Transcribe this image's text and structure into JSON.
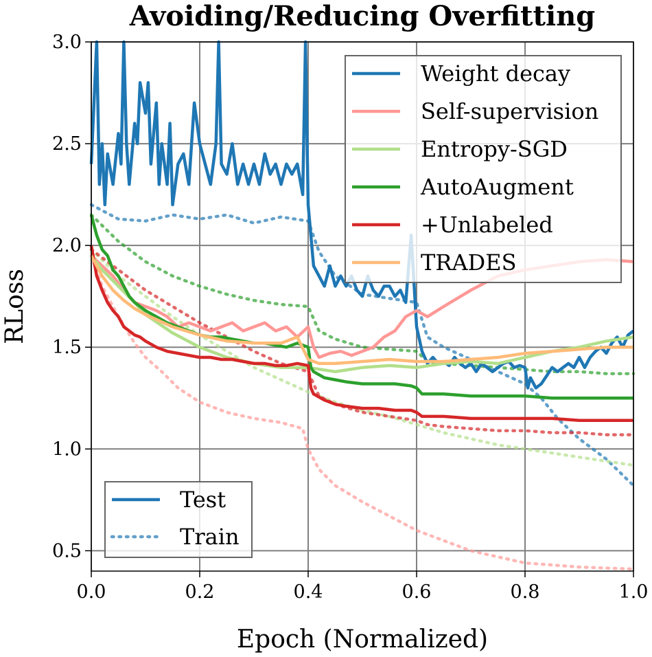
{
  "chart_data": {
    "type": "line",
    "title": "Avoiding/Reducing Overfitting",
    "xlabel": "Epoch (Normalized)",
    "ylabel": "RLoss",
    "xlim": [
      0.0,
      1.0
    ],
    "ylim": [
      0.4,
      3.0
    ],
    "xticks": [
      0.0,
      0.2,
      0.4,
      0.6,
      0.8,
      1.0
    ],
    "xtick_labels": [
      "0.0",
      "0.2",
      "0.4",
      "0.6",
      "0.8",
      "1.0"
    ],
    "yticks": [
      0.5,
      1.0,
      1.5,
      2.0,
      2.5,
      3.0
    ],
    "ytick_labels": [
      "0.5",
      "1.0",
      "1.5",
      "2.0",
      "2.5",
      "3.0"
    ],
    "grid": true,
    "legend_series_position": "top-right",
    "legend_style_position": "bottom-left",
    "style_legend": [
      {
        "label": "Test",
        "dash": "solid"
      },
      {
        "label": "Train",
        "dash": "dotted"
      }
    ],
    "series": [
      {
        "name": "Weight decay",
        "color": "#1f77b4",
        "test": {
          "x": [
            0.0,
            0.01,
            0.015,
            0.02,
            0.025,
            0.03,
            0.04,
            0.05,
            0.055,
            0.06,
            0.065,
            0.07,
            0.08,
            0.085,
            0.09,
            0.1,
            0.105,
            0.11,
            0.12,
            0.125,
            0.13,
            0.14,
            0.145,
            0.15,
            0.16,
            0.17,
            0.18,
            0.19,
            0.2,
            0.21,
            0.22,
            0.23,
            0.235,
            0.24,
            0.25,
            0.26,
            0.27,
            0.28,
            0.29,
            0.3,
            0.31,
            0.32,
            0.33,
            0.34,
            0.35,
            0.36,
            0.37,
            0.38,
            0.39,
            0.395,
            0.4,
            0.41,
            0.42,
            0.43,
            0.44,
            0.45,
            0.46,
            0.47,
            0.48,
            0.49,
            0.5,
            0.51,
            0.52,
            0.53,
            0.54,
            0.55,
            0.56,
            0.57,
            0.58,
            0.59,
            0.6,
            0.61,
            0.62,
            0.63,
            0.64,
            0.65,
            0.66,
            0.67,
            0.68,
            0.69,
            0.7,
            0.71,
            0.72,
            0.73,
            0.74,
            0.75,
            0.76,
            0.77,
            0.78,
            0.79,
            0.8,
            0.805,
            0.81,
            0.82,
            0.83,
            0.84,
            0.85,
            0.86,
            0.87,
            0.88,
            0.89,
            0.9,
            0.91,
            0.92,
            0.93,
            0.94,
            0.95,
            0.96,
            0.97,
            0.98,
            0.99,
            1.0
          ],
          "y": [
            2.4,
            3.0,
            2.3,
            2.5,
            2.2,
            2.45,
            2.3,
            2.55,
            2.4,
            3.0,
            2.5,
            2.3,
            2.6,
            2.5,
            2.8,
            2.65,
            2.8,
            2.4,
            2.7,
            2.3,
            2.5,
            2.3,
            2.6,
            2.2,
            2.4,
            2.45,
            2.3,
            2.7,
            2.5,
            2.4,
            2.3,
            2.5,
            3.0,
            2.4,
            2.35,
            2.5,
            2.3,
            2.4,
            2.3,
            2.4,
            2.3,
            2.45,
            2.35,
            2.4,
            2.3,
            2.4,
            2.35,
            2.4,
            2.25,
            3.0,
            2.2,
            1.9,
            1.85,
            1.8,
            1.9,
            1.8,
            1.85,
            1.8,
            1.85,
            1.78,
            1.75,
            1.85,
            1.78,
            1.75,
            1.8,
            1.8,
            1.75,
            1.78,
            1.72,
            2.05,
            1.6,
            1.48,
            1.42,
            1.45,
            1.42,
            1.43,
            1.41,
            1.45,
            1.42,
            1.4,
            1.42,
            1.38,
            1.42,
            1.4,
            1.38,
            1.4,
            1.42,
            1.43,
            1.4,
            1.41,
            1.4,
            1.3,
            1.35,
            1.3,
            1.32,
            1.36,
            1.4,
            1.38,
            1.4,
            1.42,
            1.4,
            1.45,
            1.4,
            1.45,
            1.48,
            1.5,
            1.47,
            1.52,
            1.55,
            1.5,
            1.56,
            1.58
          ]
        },
        "train": {
          "x": [
            0.0,
            0.05,
            0.1,
            0.15,
            0.2,
            0.25,
            0.3,
            0.35,
            0.4,
            0.42,
            0.45,
            0.5,
            0.55,
            0.6,
            0.62,
            0.65,
            0.7,
            0.75,
            0.8,
            0.83,
            0.86,
            0.9,
            0.95,
            1.0
          ],
          "y": [
            2.2,
            2.13,
            2.12,
            2.15,
            2.13,
            2.15,
            2.11,
            2.14,
            2.12,
            1.97,
            1.85,
            1.76,
            1.74,
            1.72,
            1.55,
            1.5,
            1.44,
            1.38,
            1.32,
            1.25,
            1.15,
            1.05,
            0.95,
            0.82
          ]
        }
      },
      {
        "name": "Self-supervision",
        "color": "#ff9896",
        "test": {
          "x": [
            0.0,
            0.02,
            0.04,
            0.06,
            0.08,
            0.1,
            0.12,
            0.14,
            0.16,
            0.18,
            0.2,
            0.22,
            0.24,
            0.26,
            0.28,
            0.3,
            0.32,
            0.34,
            0.36,
            0.38,
            0.4,
            0.41,
            0.42,
            0.44,
            0.46,
            0.48,
            0.5,
            0.52,
            0.54,
            0.56,
            0.58,
            0.6,
            0.62,
            0.65,
            0.7,
            0.75,
            0.8,
            0.85,
            0.9,
            0.95,
            1.0
          ],
          "y": [
            1.95,
            1.9,
            1.85,
            1.78,
            1.72,
            1.7,
            1.68,
            1.65,
            1.6,
            1.62,
            1.6,
            1.58,
            1.6,
            1.62,
            1.58,
            1.6,
            1.62,
            1.58,
            1.6,
            1.55,
            1.6,
            1.5,
            1.45,
            1.47,
            1.48,
            1.46,
            1.48,
            1.5,
            1.55,
            1.58,
            1.65,
            1.68,
            1.65,
            1.7,
            1.78,
            1.85,
            1.88,
            1.9,
            1.92,
            1.93,
            1.92
          ]
        },
        "train": {
          "x": [
            0.0,
            0.02,
            0.05,
            0.08,
            0.1,
            0.13,
            0.16,
            0.2,
            0.25,
            0.3,
            0.35,
            0.39,
            0.4,
            0.42,
            0.45,
            0.5,
            0.55,
            0.6,
            0.65,
            0.7,
            0.75,
            0.8,
            0.85,
            0.9,
            0.95,
            1.0
          ],
          "y": [
            1.95,
            1.8,
            1.65,
            1.52,
            1.45,
            1.38,
            1.3,
            1.23,
            1.18,
            1.15,
            1.13,
            1.1,
            1.0,
            0.9,
            0.82,
            0.74,
            0.67,
            0.6,
            0.55,
            0.5,
            0.47,
            0.44,
            0.43,
            0.42,
            0.415,
            0.41
          ]
        }
      },
      {
        "name": "Entropy-SGD",
        "color": "#b2df8a",
        "test": {
          "x": [
            0.0,
            0.02,
            0.05,
            0.08,
            0.1,
            0.15,
            0.2,
            0.25,
            0.3,
            0.35,
            0.4,
            0.45,
            0.5,
            0.55,
            0.6,
            0.65,
            0.7,
            0.75,
            0.8,
            0.85,
            0.9,
            0.95,
            1.0
          ],
          "y": [
            1.95,
            1.88,
            1.8,
            1.72,
            1.66,
            1.57,
            1.5,
            1.45,
            1.42,
            1.4,
            1.4,
            1.38,
            1.4,
            1.41,
            1.4,
            1.42,
            1.43,
            1.42,
            1.45,
            1.48,
            1.5,
            1.53,
            1.55
          ]
        },
        "train": {
          "x": [
            0.0,
            0.05,
            0.1,
            0.15,
            0.2,
            0.25,
            0.3,
            0.35,
            0.4,
            0.45,
            0.5,
            0.55,
            0.6,
            0.65,
            0.7,
            0.75,
            0.8,
            0.85,
            0.9,
            0.95,
            1.0
          ],
          "y": [
            1.98,
            1.85,
            1.75,
            1.65,
            1.56,
            1.48,
            1.4,
            1.34,
            1.28,
            1.23,
            1.19,
            1.16,
            1.12,
            1.08,
            1.05,
            1.02,
            1.0,
            0.98,
            0.96,
            0.94,
            0.92
          ]
        }
      },
      {
        "name": "AutoAugment",
        "color": "#2ca02c",
        "test": {
          "x": [
            0.0,
            0.01,
            0.02,
            0.03,
            0.04,
            0.05,
            0.06,
            0.07,
            0.08,
            0.09,
            0.1,
            0.12,
            0.14,
            0.16,
            0.18,
            0.2,
            0.22,
            0.24,
            0.26,
            0.28,
            0.3,
            0.32,
            0.34,
            0.36,
            0.38,
            0.4,
            0.405,
            0.41,
            0.43,
            0.45,
            0.47,
            0.5,
            0.53,
            0.56,
            0.59,
            0.6,
            0.61,
            0.65,
            0.7,
            0.75,
            0.8,
            0.85,
            0.9,
            0.95,
            1.0
          ],
          "y": [
            2.15,
            2.05,
            1.98,
            1.95,
            1.88,
            1.85,
            1.8,
            1.75,
            1.72,
            1.7,
            1.68,
            1.65,
            1.62,
            1.6,
            1.58,
            1.56,
            1.55,
            1.55,
            1.54,
            1.53,
            1.52,
            1.52,
            1.51,
            1.5,
            1.52,
            1.5,
            1.4,
            1.38,
            1.35,
            1.34,
            1.33,
            1.32,
            1.32,
            1.32,
            1.31,
            1.3,
            1.27,
            1.27,
            1.26,
            1.26,
            1.26,
            1.25,
            1.25,
            1.25,
            1.25
          ]
        },
        "train": {
          "x": [
            0.0,
            0.05,
            0.1,
            0.15,
            0.2,
            0.25,
            0.3,
            0.35,
            0.4,
            0.42,
            0.45,
            0.5,
            0.55,
            0.6,
            0.62,
            0.65,
            0.7,
            0.75,
            0.8,
            0.85,
            0.9,
            0.95,
            1.0
          ],
          "y": [
            2.15,
            2.02,
            1.92,
            1.85,
            1.8,
            1.76,
            1.73,
            1.71,
            1.7,
            1.58,
            1.54,
            1.5,
            1.49,
            1.48,
            1.43,
            1.42,
            1.41,
            1.4,
            1.39,
            1.38,
            1.38,
            1.37,
            1.37
          ]
        }
      },
      {
        "name": "+Unlabeled",
        "color": "#d62728",
        "test": {
          "x": [
            0.0,
            0.01,
            0.02,
            0.03,
            0.04,
            0.05,
            0.06,
            0.07,
            0.08,
            0.09,
            0.1,
            0.12,
            0.14,
            0.16,
            0.18,
            0.2,
            0.22,
            0.24,
            0.26,
            0.28,
            0.3,
            0.32,
            0.34,
            0.36,
            0.38,
            0.4,
            0.405,
            0.41,
            0.43,
            0.45,
            0.47,
            0.5,
            0.53,
            0.56,
            0.59,
            0.6,
            0.61,
            0.65,
            0.7,
            0.75,
            0.8,
            0.85,
            0.9,
            0.95,
            1.0
          ],
          "y": [
            2.0,
            1.85,
            1.78,
            1.72,
            1.68,
            1.65,
            1.6,
            1.58,
            1.56,
            1.55,
            1.53,
            1.5,
            1.48,
            1.47,
            1.46,
            1.45,
            1.45,
            1.44,
            1.44,
            1.43,
            1.42,
            1.42,
            1.41,
            1.41,
            1.42,
            1.41,
            1.3,
            1.27,
            1.24,
            1.22,
            1.21,
            1.2,
            1.2,
            1.19,
            1.19,
            1.18,
            1.16,
            1.16,
            1.15,
            1.15,
            1.15,
            1.15,
            1.14,
            1.14,
            1.14
          ]
        },
        "train": {
          "x": [
            0.0,
            0.05,
            0.1,
            0.15,
            0.2,
            0.25,
            0.3,
            0.35,
            0.4,
            0.42,
            0.45,
            0.5,
            0.55,
            0.6,
            0.62,
            0.65,
            0.7,
            0.75,
            0.8,
            0.85,
            0.9,
            0.95,
            1.0
          ],
          "y": [
            1.98,
            1.88,
            1.78,
            1.7,
            1.62,
            1.55,
            1.48,
            1.42,
            1.38,
            1.26,
            1.22,
            1.18,
            1.16,
            1.14,
            1.12,
            1.11,
            1.1,
            1.09,
            1.09,
            1.08,
            1.08,
            1.07,
            1.07
          ]
        }
      },
      {
        "name": "TRADES",
        "color": "#ffbb78",
        "test": {
          "x": [
            0.0,
            0.02,
            0.04,
            0.06,
            0.08,
            0.1,
            0.15,
            0.2,
            0.25,
            0.3,
            0.35,
            0.38,
            0.4,
            0.42,
            0.45,
            0.5,
            0.55,
            0.6,
            0.65,
            0.7,
            0.75,
            0.8,
            0.85,
            0.9,
            0.95,
            1.0
          ],
          "y": [
            1.95,
            1.85,
            1.78,
            1.73,
            1.69,
            1.66,
            1.6,
            1.56,
            1.53,
            1.52,
            1.52,
            1.55,
            1.44,
            1.42,
            1.42,
            1.43,
            1.44,
            1.43,
            1.43,
            1.44,
            1.45,
            1.47,
            1.48,
            1.49,
            1.5,
            1.5
          ]
        },
        "train": null
      }
    ]
  }
}
